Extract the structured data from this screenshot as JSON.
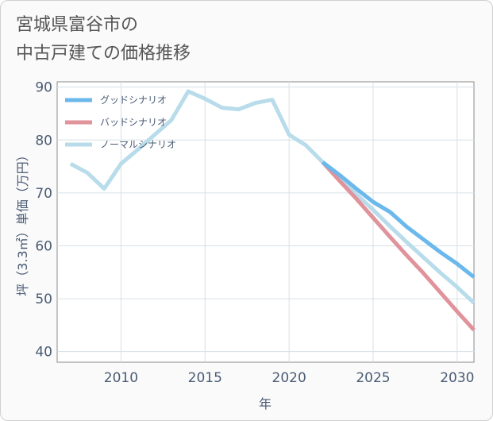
{
  "title_lines": [
    "宮城県富谷市の",
    "中古戸建ての価格推移"
  ],
  "chart_data": {
    "type": "line",
    "title": "宮城県富谷市の中古戸建ての価格推移",
    "xlabel": "年",
    "ylabel": "坪（3.3㎡）単価（万円）",
    "xlim": [
      2006.2,
      2031
    ],
    "ylim": [
      38,
      91
    ],
    "xticks": [
      2010,
      2015,
      2020,
      2025,
      2030
    ],
    "yticks": [
      40,
      50,
      60,
      70,
      80,
      90
    ],
    "grid": true,
    "legend_position": "top-left",
    "series": [
      {
        "name": "グッドシナリオ",
        "color": "#6bb8ec",
        "x": [
          2022,
          2023,
          2024,
          2025,
          2026,
          2027,
          2028,
          2029,
          2030,
          2031
        ],
        "y": [
          75.8,
          73.4,
          70.8,
          68.3,
          66.4,
          63.6,
          61.2,
          58.8,
          56.6,
          54.1
        ]
      },
      {
        "name": "バッドシナリオ",
        "color": "#e0939b",
        "x": [
          2022,
          2023,
          2024,
          2025,
          2026,
          2027,
          2028,
          2029,
          2030,
          2031
        ],
        "y": [
          75.8,
          72.3,
          68.9,
          65.3,
          61.7,
          58.2,
          54.8,
          51.2,
          47.6,
          44.1
        ]
      },
      {
        "name": "ノーマルシナリオ",
        "color": "#b8dcea",
        "x": [
          2007,
          2008,
          2009,
          2010,
          2011,
          2012,
          2013,
          2014,
          2015,
          2016,
          2017,
          2018,
          2019,
          2020,
          2021,
          2022,
          2023,
          2024,
          2025,
          2026,
          2027,
          2028,
          2029,
          2030,
          2031
        ],
        "y": [
          75.5,
          73.8,
          70.8,
          75.5,
          78.2,
          81.0,
          83.8,
          89.2,
          87.8,
          86.1,
          85.8,
          87.0,
          87.6,
          81.0,
          79.0,
          75.8,
          72.8,
          69.8,
          66.8,
          63.7,
          60.7,
          57.8,
          54.9,
          52.2,
          49.2
        ]
      }
    ]
  }
}
